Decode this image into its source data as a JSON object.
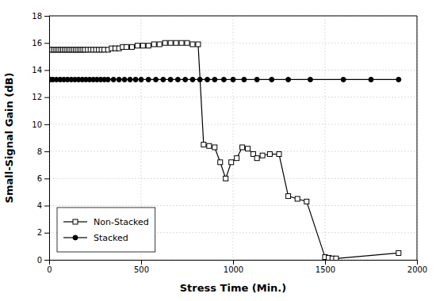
{
  "chart_data": {
    "type": "line",
    "xlabel": "Stress Time (Min.)",
    "ylabel": "Small-Signal Gain (dB)",
    "xlim": [
      0,
      2000
    ],
    "ylim": [
      0,
      18
    ],
    "xticks": [
      0,
      500,
      1000,
      1500,
      2000
    ],
    "yticks": [
      0,
      2,
      4,
      6,
      8,
      10,
      12,
      14,
      16,
      18
    ],
    "grid": true,
    "legend": "lower left",
    "series": [
      {
        "name": "Non-Stacked",
        "color": "black",
        "marker": "square",
        "line_style": "solid",
        "x": [
          5,
          15,
          25,
          35,
          45,
          55,
          65,
          75,
          85,
          95,
          105,
          115,
          125,
          135,
          145,
          155,
          165,
          175,
          185,
          195,
          210,
          225,
          240,
          255,
          270,
          285,
          300,
          320,
          340,
          360,
          380,
          400,
          420,
          450,
          480,
          510,
          540,
          570,
          600,
          630,
          660,
          690,
          720,
          750,
          780,
          810,
          840,
          870,
          900,
          930,
          960,
          990,
          1020,
          1050,
          1080,
          1110,
          1130,
          1160,
          1200,
          1250,
          1300,
          1350,
          1400,
          1500,
          1520,
          1540,
          1560,
          1900
        ],
        "values": [
          15.5,
          15.5,
          15.5,
          15.5,
          15.5,
          15.5,
          15.5,
          15.5,
          15.5,
          15.5,
          15.5,
          15.5,
          15.5,
          15.5,
          15.5,
          15.5,
          15.5,
          15.5,
          15.5,
          15.5,
          15.5,
          15.5,
          15.5,
          15.5,
          15.5,
          15.5,
          15.5,
          15.5,
          15.6,
          15.6,
          15.6,
          15.7,
          15.7,
          15.7,
          15.8,
          15.8,
          15.8,
          15.9,
          15.9,
          16.0,
          16.0,
          16.0,
          16.0,
          16.0,
          15.9,
          15.9,
          8.5,
          8.4,
          8.3,
          7.2,
          6.0,
          7.2,
          7.5,
          8.3,
          8.2,
          7.8,
          7.5,
          7.7,
          7.8,
          7.8,
          4.7,
          4.5,
          4.3,
          0.2,
          0.15,
          0.1,
          0.1,
          0.5
        ]
      },
      {
        "name": "Stacked",
        "color": "black",
        "marker": "circle",
        "line_style": "solid",
        "x": [
          5,
          20,
          40,
          60,
          80,
          100,
          120,
          140,
          160,
          180,
          200,
          220,
          240,
          260,
          280,
          300,
          320,
          350,
          380,
          410,
          440,
          470,
          500,
          540,
          580,
          620,
          660,
          700,
          740,
          780,
          820,
          860,
          900,
          950,
          1000,
          1060,
          1130,
          1210,
          1300,
          1420,
          1600,
          1750,
          1900
        ],
        "values": [
          13.3,
          13.3,
          13.3,
          13.3,
          13.3,
          13.3,
          13.3,
          13.3,
          13.3,
          13.3,
          13.3,
          13.3,
          13.3,
          13.3,
          13.3,
          13.3,
          13.3,
          13.3,
          13.3,
          13.3,
          13.3,
          13.3,
          13.3,
          13.3,
          13.3,
          13.3,
          13.3,
          13.3,
          13.3,
          13.3,
          13.3,
          13.3,
          13.3,
          13.3,
          13.3,
          13.3,
          13.3,
          13.3,
          13.3,
          13.3,
          13.3,
          13.3,
          13.3
        ]
      }
    ]
  }
}
